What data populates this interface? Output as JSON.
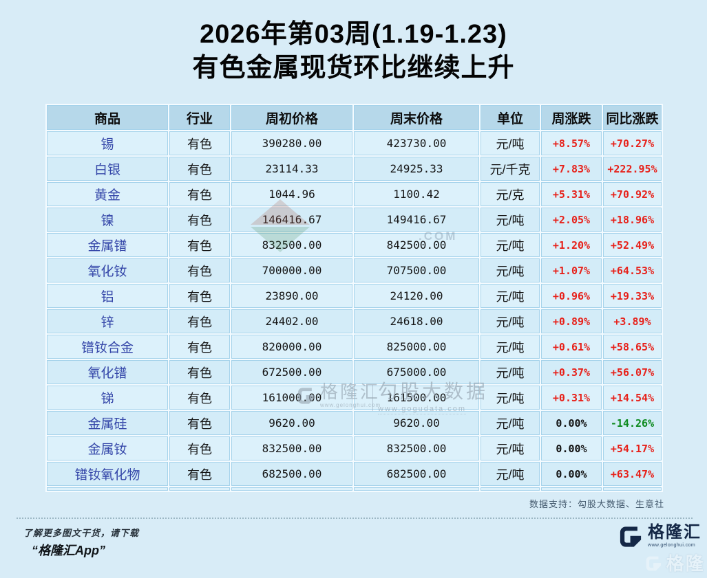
{
  "page": {
    "title_line1": "2026年第03周(1.19-1.23)",
    "title_line2": "有色金属现货环比继续上升",
    "data_support": "数据支持：勾股大数据、生意社",
    "footer_note_line1": "了解更多图文干货，请下载",
    "footer_note_line2": "“格隆汇App”"
  },
  "brand": {
    "logo_text": "格隆汇",
    "logo_url": "www.gelonghui.com"
  },
  "watermarks": {
    "center_brand": "格隆汇",
    "center_brand_url": "www.gelonghui.com",
    "center_data": "勾股大数据",
    "center_data_url": "www.gogudata.com",
    "faint_com": ".COM"
  },
  "colors": {
    "positive": "#e7211a",
    "negative": "#0d8a1e",
    "flat": "#111111",
    "commodity": "#3547a9"
  },
  "chart_data": {
    "type": "table",
    "title": "2026年第03周(1.19-1.23) 有色金属现货环比继续上升",
    "columns": [
      "商品",
      "行业",
      "周初价格",
      "周末价格",
      "单位",
      "周涨跌",
      "同比涨跌"
    ],
    "rows": [
      [
        "锡",
        "有色",
        "390280.00",
        "423730.00",
        "元/吨",
        "+8.57%",
        "+70.27%"
      ],
      [
        "白银",
        "有色",
        "23114.33",
        "24925.33",
        "元/千克",
        "+7.83%",
        "+222.95%"
      ],
      [
        "黄金",
        "有色",
        "1044.96",
        "1100.42",
        "元/克",
        "+5.31%",
        "+70.92%"
      ],
      [
        "镍",
        "有色",
        "146416.67",
        "149416.67",
        "元/吨",
        "+2.05%",
        "+18.96%"
      ],
      [
        "金属镨",
        "有色",
        "832500.00",
        "842500.00",
        "元/吨",
        "+1.20%",
        "+52.49%"
      ],
      [
        "氧化钕",
        "有色",
        "700000.00",
        "707500.00",
        "元/吨",
        "+1.07%",
        "+64.53%"
      ],
      [
        "铝",
        "有色",
        "23890.00",
        "24120.00",
        "元/吨",
        "+0.96%",
        "+19.33%"
      ],
      [
        "锌",
        "有色",
        "24402.00",
        "24618.00",
        "元/吨",
        "+0.89%",
        "+3.89%"
      ],
      [
        "镨钕合金",
        "有色",
        "820000.00",
        "825000.00",
        "元/吨",
        "+0.61%",
        "+58.65%"
      ],
      [
        "氧化镨",
        "有色",
        "672500.00",
        "675000.00",
        "元/吨",
        "+0.37%",
        "+56.07%"
      ],
      [
        "锑",
        "有色",
        "161000.00",
        "161500.00",
        "元/吨",
        "+0.31%",
        "+14.54%"
      ],
      [
        "金属硅",
        "有色",
        "9620.00",
        "9620.00",
        "元/吨",
        "0.00%",
        "-14.26%"
      ],
      [
        "金属钕",
        "有色",
        "832500.00",
        "832500.00",
        "元/吨",
        "0.00%",
        "+54.17%"
      ],
      [
        "镨钕氧化物",
        "有色",
        "682500.00",
        "682500.00",
        "元/吨",
        "0.00%",
        "+63.47%"
      ]
    ]
  }
}
